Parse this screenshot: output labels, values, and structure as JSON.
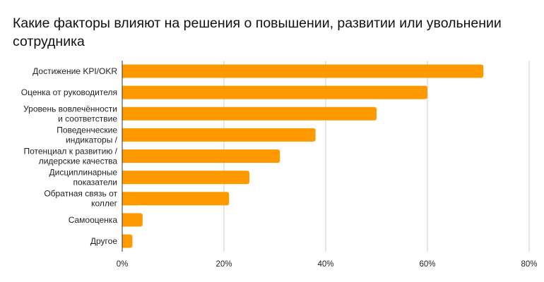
{
  "chart_data": {
    "type": "bar",
    "orientation": "horizontal",
    "title": "Какие факторы влияют на решения о повышении, развитии или увольнении сотрудника",
    "categories": [
      [
        "Достижение KPI/OKR"
      ],
      [
        "Оценка от руководителя"
      ],
      [
        "Уровень вовлечённости",
        "и соответствие"
      ],
      [
        "Поведенческие",
        "индикаторы /"
      ],
      [
        "Потенциал к развитию /",
        "лидерские качества"
      ],
      [
        "Дисциплинарные",
        "показатели"
      ],
      [
        "Обратная связь от",
        "коллег"
      ],
      [
        "Самооценка"
      ],
      [
        "Другое"
      ]
    ],
    "values": [
      71,
      60,
      50,
      38,
      31,
      25,
      21,
      4,
      2
    ],
    "xlim": [
      0,
      80
    ],
    "xticks": [
      0,
      20,
      40,
      60,
      80
    ],
    "tick_format": "percent",
    "bar_color": "#FF9900",
    "grid_color": "#cccccc",
    "axis_color": "#333333",
    "grid": true,
    "legend": false
  }
}
